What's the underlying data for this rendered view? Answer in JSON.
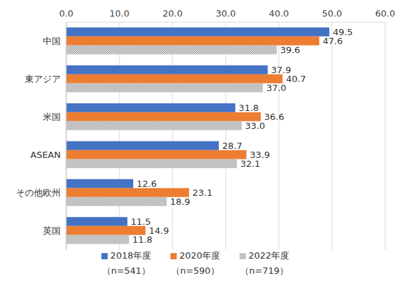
{
  "chart_data": {
    "type": "bar",
    "orientation": "horizontal",
    "grid": true,
    "data_labels": true,
    "legend": "bottom",
    "categories": [
      "中国",
      "東アジア",
      "米国",
      "ASEAN",
      "その他欧州",
      "英国"
    ],
    "xlim": [
      0,
      60
    ],
    "xticks": [
      {
        "value": 0,
        "label": "0.0"
      },
      {
        "value": 10,
        "label": "10.0"
      },
      {
        "value": 20,
        "label": "20.0"
      },
      {
        "value": 30,
        "label": "30.0"
      },
      {
        "value": 40,
        "label": "40.0"
      },
      {
        "value": 50,
        "label": "50.0"
      },
      {
        "value": 60,
        "label": "60.0"
      }
    ],
    "series": [
      {
        "name": "2018年度",
        "legend_note": "（n=541）",
        "color": "#4472c4",
        "values": [
          49.5,
          37.9,
          31.8,
          28.7,
          12.6,
          11.5
        ],
        "value_labels": [
          "49.5",
          "37.9",
          "31.8",
          "28.7",
          "12.6",
          "11.5"
        ]
      },
      {
        "name": "2020年度",
        "legend_note": "（n=590）",
        "color": "#ed7d31",
        "values": [
          47.6,
          40.7,
          36.6,
          33.9,
          23.1,
          14.9
        ],
        "value_labels": [
          "47.6",
          "40.7",
          "36.6",
          "33.9",
          "23.1",
          "14.9"
        ]
      },
      {
        "name": "2022年度",
        "legend_note": "（n=719）",
        "color": "#a5a5a5",
        "values": [
          39.6,
          37.0,
          33.0,
          32.1,
          18.9,
          11.8
        ],
        "value_labels": [
          "39.6",
          "37.0",
          "33.0",
          "32.1",
          "18.9",
          "11.8"
        ]
      }
    ]
  }
}
